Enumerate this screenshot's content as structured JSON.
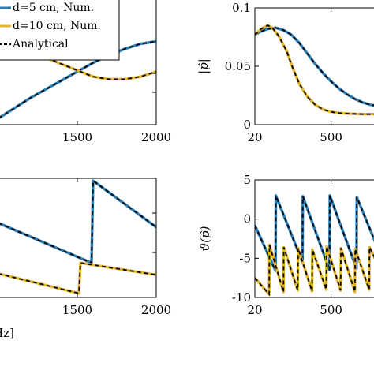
{
  "colors": {
    "blue": "#2a7fb8",
    "yellow": "#e3b52c",
    "analytical": "#000000"
  },
  "chart_data": [
    {
      "id": "tl",
      "type": "line",
      "xlim": [
        1000,
        2000
      ],
      "ylim": [
        0,
        1
      ],
      "x_ticks": [
        1500,
        2000
      ],
      "y_ticks": [],
      "x_tick_labels": [
        "1500",
        "2000"
      ],
      "legend": {
        "placement": "top-left",
        "entries": [
          "d=5 cm, Num.",
          "d=10 cm, Num.",
          "Analytical"
        ]
      },
      "series": [
        {
          "name": "d=5 cm, Num.",
          "color": "blue",
          "x": [
            1000,
            1100,
            1200,
            1300,
            1400,
            1500,
            1600,
            1700,
            1800,
            1900,
            2000
          ],
          "y": [
            0.05,
            0.13,
            0.21,
            0.28,
            0.35,
            0.42,
            0.49,
            0.55,
            0.6,
            0.64,
            0.66
          ]
        },
        {
          "name": "d=10 cm, Num.",
          "color": "yellow",
          "x": [
            1000,
            1100,
            1200,
            1300,
            1400,
            1500,
            1600,
            1700,
            1800,
            1900,
            2000
          ],
          "y": [
            0.62,
            0.6,
            0.57,
            0.53,
            0.48,
            0.43,
            0.38,
            0.36,
            0.36,
            0.38,
            0.42
          ]
        }
      ]
    },
    {
      "id": "tr",
      "type": "line",
      "xlim": [
        20,
        800
      ],
      "ylim": [
        0,
        0.1
      ],
      "x_ticks": [
        20,
        500
      ],
      "y_ticks": [
        0,
        0.05,
        0.1
      ],
      "x_tick_labels": [
        "20",
        "500"
      ],
      "y_tick_labels": [
        "0",
        "0.05",
        "0.1"
      ],
      "ylabel": "|p̂|",
      "series": [
        {
          "name": "d=5 cm, Num.",
          "color": "blue",
          "x": [
            20,
            60,
            100,
            150,
            200,
            250,
            300,
            350,
            400,
            450,
            500,
            550,
            600,
            650,
            700,
            750,
            800
          ],
          "y": [
            0.077,
            0.08,
            0.082,
            0.083,
            0.081,
            0.077,
            0.07,
            0.061,
            0.052,
            0.044,
            0.037,
            0.031,
            0.026,
            0.022,
            0.019,
            0.017,
            0.016
          ]
        },
        {
          "name": "d=10 cm, Num.",
          "color": "yellow",
          "x": [
            20,
            60,
            100,
            130,
            170,
            220,
            260,
            300,
            350,
            400,
            450,
            500,
            550,
            600,
            700,
            800
          ],
          "y": [
            0.077,
            0.082,
            0.085,
            0.083,
            0.076,
            0.063,
            0.048,
            0.035,
            0.024,
            0.017,
            0.013,
            0.011,
            0.01,
            0.0095,
            0.009,
            0.009
          ]
        }
      ]
    },
    {
      "id": "bl",
      "type": "line",
      "xlim": [
        1000,
        2000
      ],
      "ylim": [
        -1,
        1
      ],
      "x_ticks": [
        1500,
        2000
      ],
      "y_ticks": [],
      "x_tick_labels": [
        "1500",
        "2000"
      ],
      "xlabel": "Hz]",
      "series": [
        {
          "name": "d=5 cm, Num.",
          "color": "blue",
          "x": [
            1000,
            1590,
            1600,
            2000
          ],
          "y": [
            0.25,
            -0.42,
            0.96,
            0.18
          ]
        },
        {
          "name": "d=10 cm, Num.",
          "color": "yellow",
          "x": [
            1000,
            1510,
            1520,
            2000
          ],
          "y": [
            -0.6,
            -0.93,
            -0.42,
            -0.62
          ]
        }
      ]
    },
    {
      "id": "br",
      "type": "line",
      "xlim": [
        20,
        800
      ],
      "ylim": [
        -10,
        5
      ],
      "x_ticks": [
        20,
        500
      ],
      "y_ticks": [
        -10,
        -5,
        0,
        5
      ],
      "x_tick_labels": [
        "20",
        "500"
      ],
      "y_tick_labels": [
        "-10",
        "-5",
        "0",
        "5"
      ],
      "ylabel": "ϑ(p̂)",
      "series": [
        {
          "name": "d=5 cm, Num.",
          "color": "blue",
          "x": [
            20,
            150,
            152,
            320,
            322,
            490,
            492,
            660,
            662,
            800
          ],
          "y": [
            -0.8,
            -6.6,
            3.0,
            -5.5,
            2.9,
            -6.5,
            3.0,
            -6.3,
            2.8,
            -4.0
          ]
        },
        {
          "name": "d=10 cm, Num.",
          "color": "yellow",
          "x": [
            20,
            110,
            112,
            200,
            202,
            290,
            292,
            380,
            382,
            470,
            472,
            560,
            562,
            650,
            652,
            740,
            742,
            800
          ],
          "y": [
            -7.5,
            -9.6,
            -3.3,
            -9.3,
            -3.6,
            -9.1,
            -3.7,
            -9.2,
            -3.9,
            -9.0,
            -3.5,
            -9.1,
            -3.7,
            -9.3,
            -3.8,
            -9.0,
            -3.6,
            -6.0
          ]
        }
      ]
    }
  ]
}
